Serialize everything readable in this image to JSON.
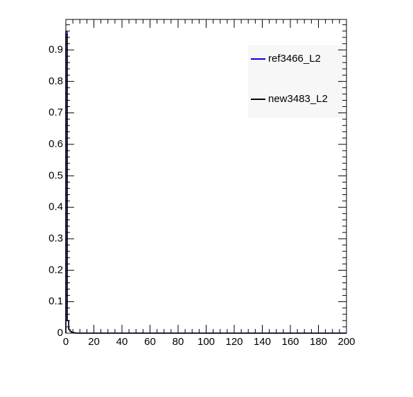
{
  "chart_data": {
    "type": "histogram",
    "bins": [
      0,
      1,
      2,
      3,
      4,
      5,
      6,
      7,
      200
    ],
    "series": [
      {
        "name": "ref3466_L2",
        "color": "#0000cc",
        "values": [
          0.958,
          0.04,
          0.012,
          0.006,
          0.003,
          0.002,
          0.001,
          0
        ]
      },
      {
        "name": "new3483_L2",
        "color": "#000000",
        "values": [
          0.95,
          0.04,
          0.012,
          0.006,
          0.003,
          0.002,
          0.001,
          0
        ]
      }
    ],
    "xlim": [
      0,
      200
    ],
    "xticks": [
      0,
      20,
      40,
      60,
      80,
      100,
      120,
      140,
      160,
      180,
      200
    ],
    "ylim": [
      0,
      0.997
    ],
    "yticks": [
      0,
      0.1,
      0.2,
      0.3,
      0.4,
      0.5,
      0.6,
      0.7,
      0.8,
      0.9
    ],
    "legend": "top-right"
  }
}
